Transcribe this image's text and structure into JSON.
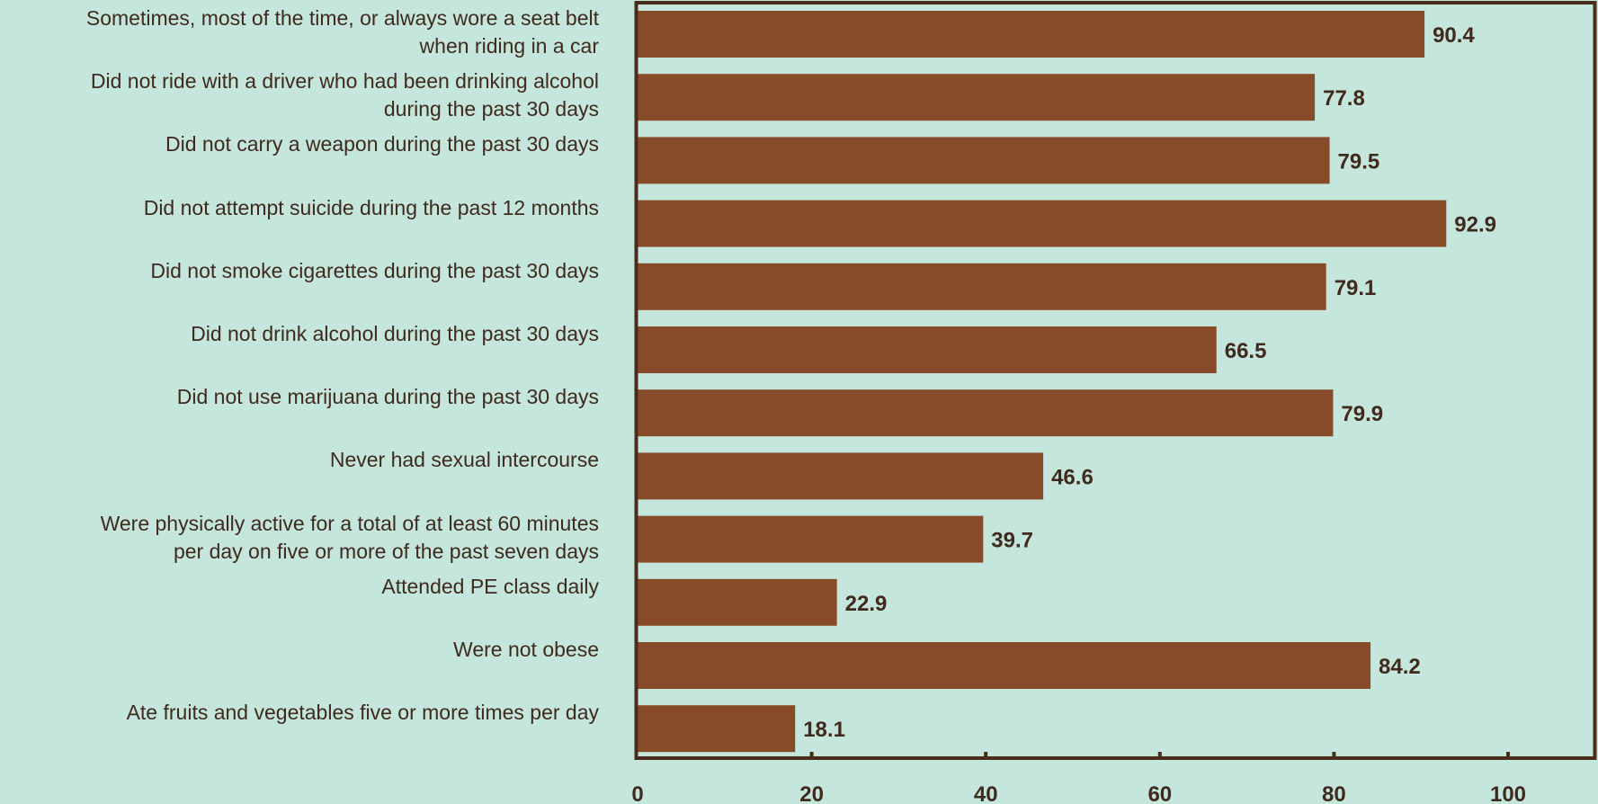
{
  "chart_data": {
    "type": "bar",
    "orientation": "horizontal",
    "title": "",
    "xlabel": "",
    "ylabel": "",
    "xlim": [
      0,
      110
    ],
    "x_ticks": [
      0,
      20,
      40,
      60,
      80,
      100
    ],
    "grid": false,
    "categories": [
      "Sometimes, most of the time, or always wore a seat belt\nwhen riding in a car",
      "Did not ride with a driver who had been drinking alcohol\nduring the past 30 days",
      "Did not carry a weapon during the past 30 days",
      "Did not attempt suicide during the past 12 months",
      "Did not smoke cigarettes during the past 30 days",
      "Did not drink alcohol during the past 30 days",
      "Did not use marijuana during the past 30 days",
      "Never had sexual intercourse",
      "Were physically active for a total of at least 60 minutes\nper day on five or more of the past seven days",
      "Attended PE class daily",
      "Were not obese",
      "Ate fruits and vegetables five or more times per day"
    ],
    "values": [
      90.4,
      77.8,
      79.5,
      92.9,
      79.1,
      66.5,
      79.9,
      46.6,
      39.7,
      22.9,
      84.2,
      18.1
    ],
    "data_labels": [
      "90.4",
      "77.8",
      "79.5",
      "92.9",
      "79.1",
      "66.5",
      "79.9",
      "46.6",
      "39.7",
      "22.9",
      "84.2",
      "18.1"
    ],
    "colors": {
      "background": "#c5e6dc",
      "bar": "#874b29",
      "axis": "#4a2c1a",
      "text": "#3f2a1d"
    }
  }
}
